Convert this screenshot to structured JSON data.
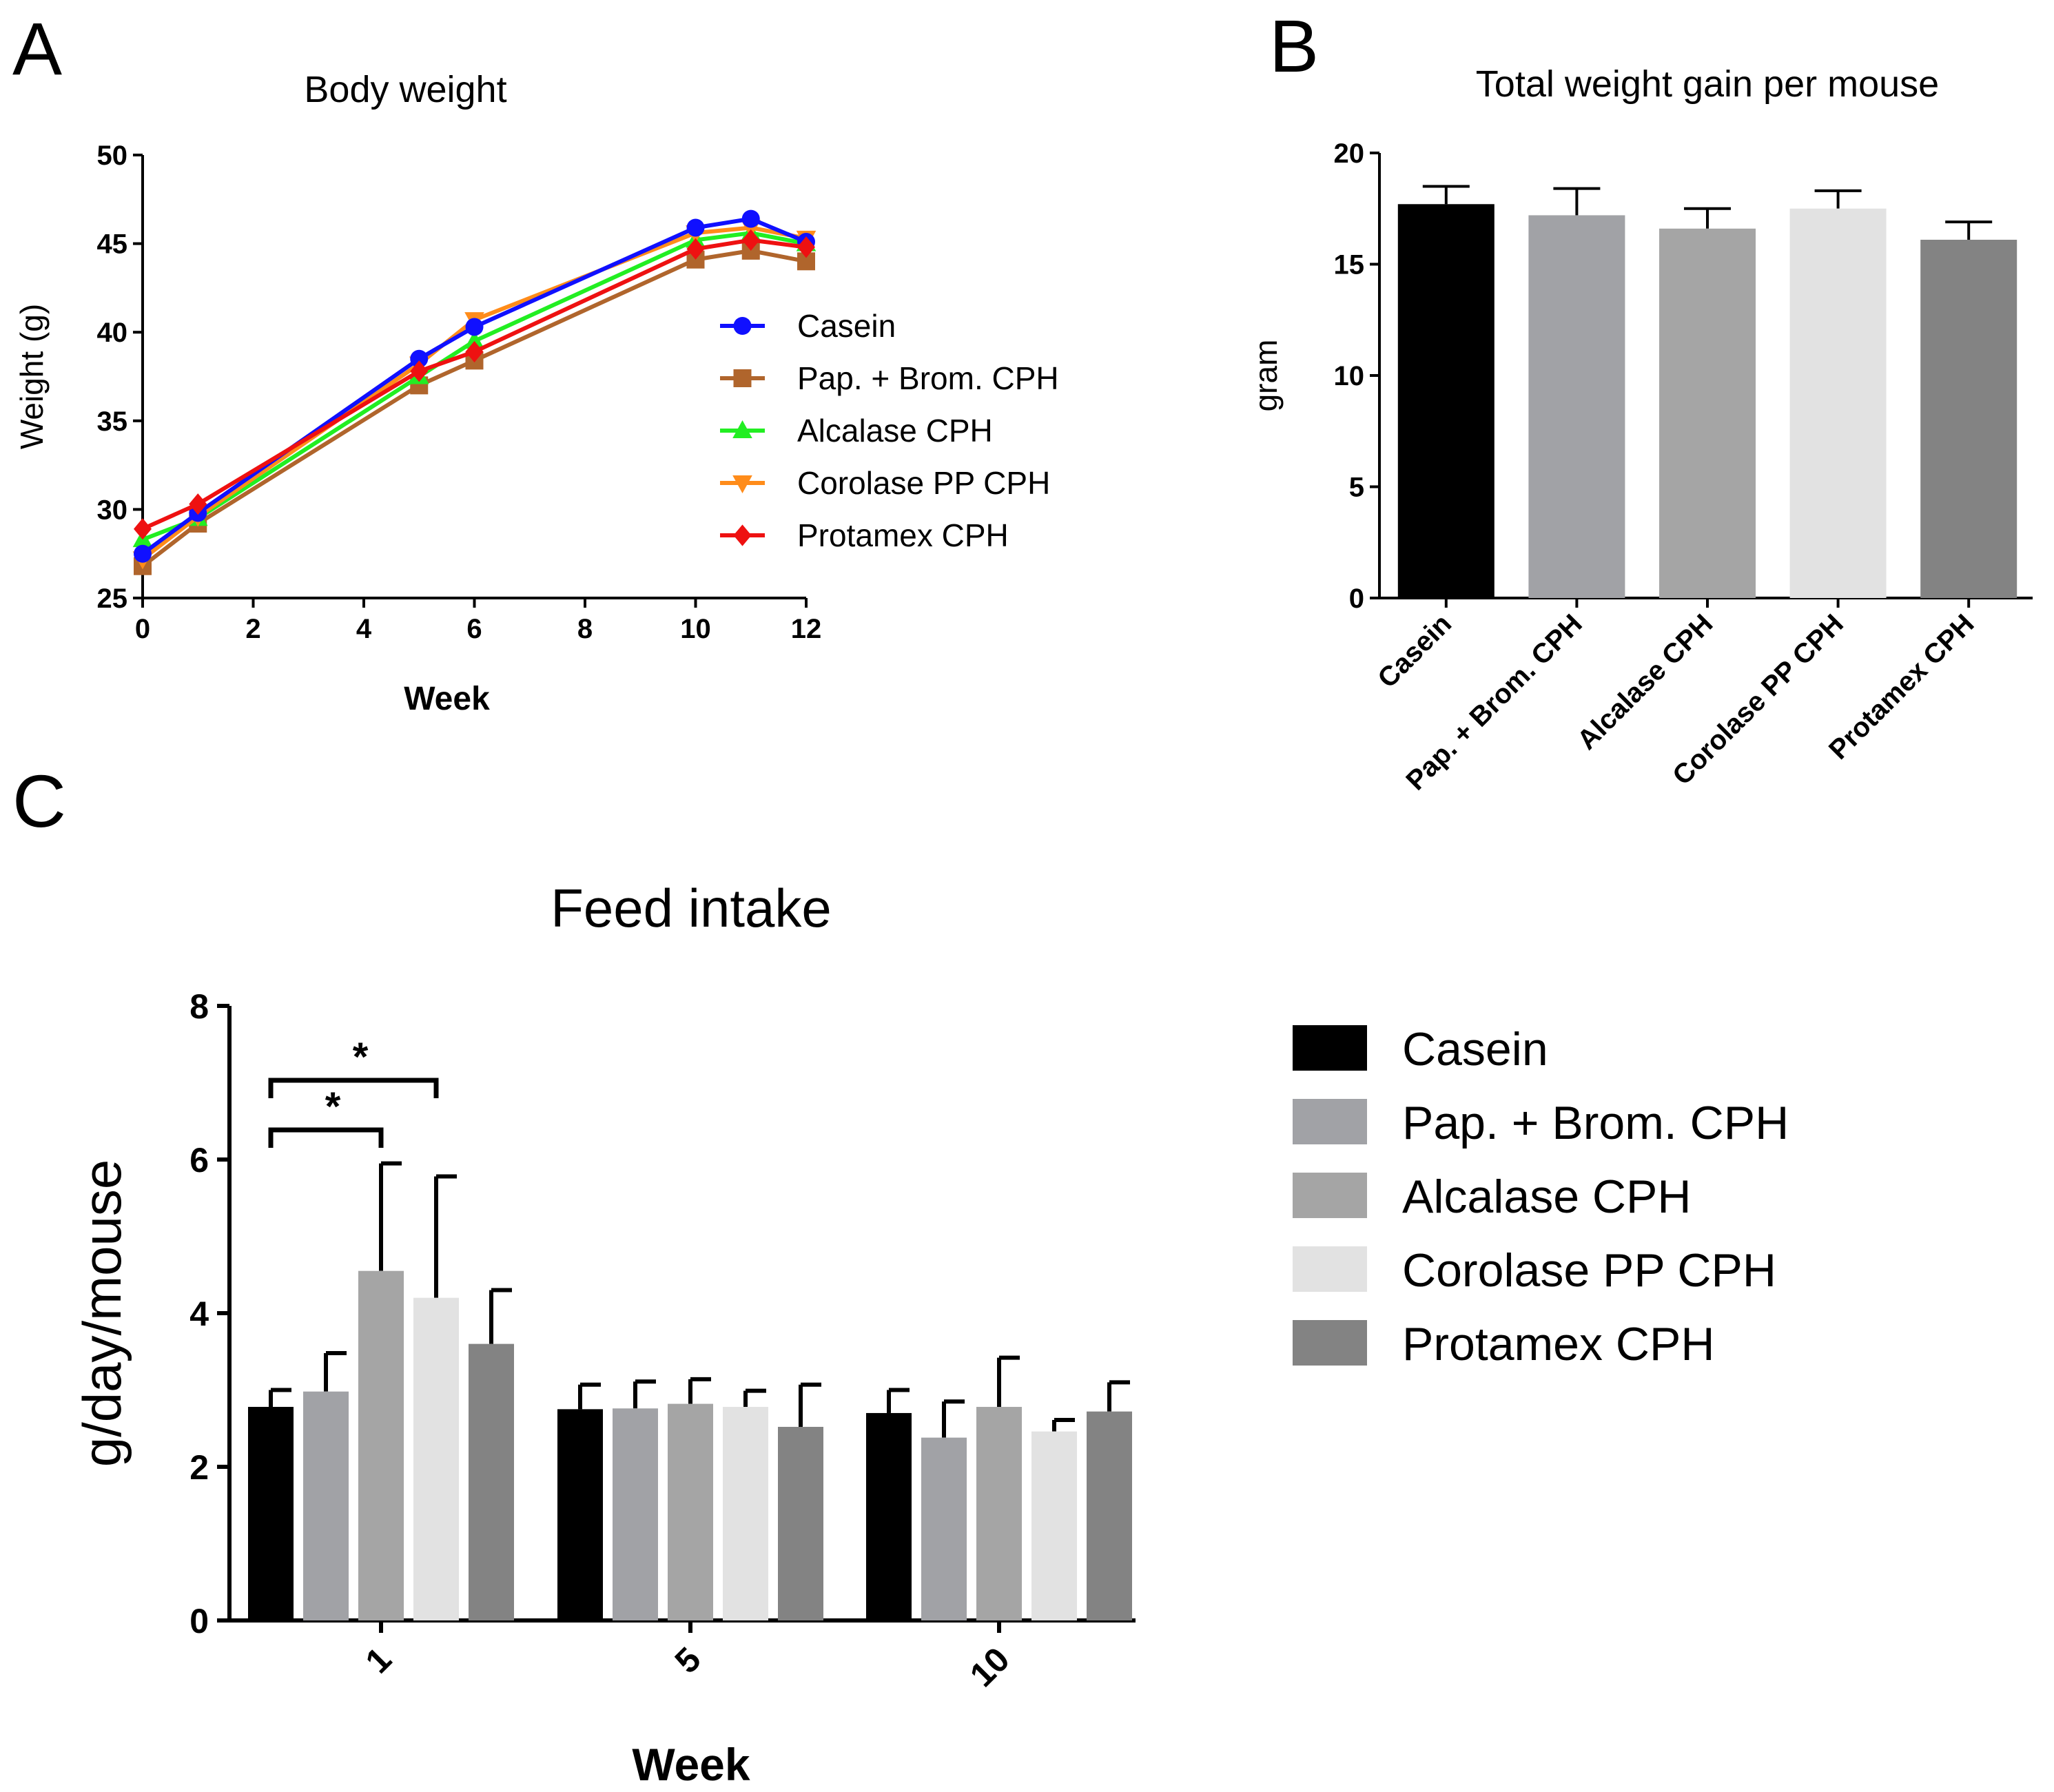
{
  "panels": {
    "a": {
      "letter": "A"
    },
    "b": {
      "letter": "B"
    },
    "c": {
      "letter": "C"
    }
  },
  "colors": {
    "casein_line": "#1010ff",
    "pap_line": "#b0652c",
    "alcalase_line": "#22ee22",
    "corolase_line": "#ff8c1a",
    "protamex_line": "#ee1111",
    "casein_bar": "#000000",
    "pap_bar": "#a1a2a6",
    "alcalase_bar": "#a5a5a5",
    "corolase_bar": "#e2e2e2",
    "protamex_bar": "#838383"
  },
  "chart_data": [
    {
      "id": "a",
      "type": "line",
      "title": "Body weight",
      "xlabel": "Week",
      "ylabel": "Weight (g)",
      "xlim": [
        0,
        12
      ],
      "ylim": [
        25,
        50
      ],
      "xticks": [
        0,
        2,
        4,
        6,
        8,
        10,
        12
      ],
      "yticks": [
        25,
        30,
        35,
        40,
        45,
        50
      ],
      "grid": false,
      "legend_position": "center-right",
      "x": [
        0,
        1,
        5,
        6,
        10,
        11,
        12
      ],
      "series": [
        {
          "name": "Casein",
          "marker": "circle",
          "values": [
            27.5,
            29.8,
            38.5,
            40.3,
            45.9,
            46.4,
            45.1
          ]
        },
        {
          "name": "Pap. + Brom. CPH",
          "marker": "square",
          "values": [
            26.8,
            29.2,
            37.0,
            38.4,
            44.1,
            44.6,
            44.0
          ]
        },
        {
          "name": "Alcalase CPH",
          "marker": "triangle-up",
          "values": [
            28.3,
            29.5,
            37.5,
            39.5,
            45.2,
            45.6,
            45.0
          ]
        },
        {
          "name": "Corolase PP CPH",
          "marker": "triangle-down",
          "values": [
            27.2,
            29.6,
            38.2,
            40.7,
            45.6,
            45.9,
            45.3
          ]
        },
        {
          "name": "Protamex CPH",
          "marker": "diamond",
          "values": [
            28.9,
            30.3,
            37.8,
            38.9,
            44.7,
            45.2,
            44.8
          ]
        }
      ]
    },
    {
      "id": "b",
      "type": "bar",
      "title": "Total weight gain per mouse",
      "xlabel": "",
      "ylabel": "gram",
      "ylim": [
        0,
        20
      ],
      "yticks": [
        0,
        5,
        10,
        15,
        20
      ],
      "categories": [
        "Casein",
        "Pap. + Brom. CPH",
        "Alcalase CPH",
        "Corolase PP CPH",
        "Protamex CPH"
      ],
      "values": [
        17.7,
        17.2,
        16.6,
        17.5,
        16.1
      ],
      "errors": [
        0.8,
        1.2,
        0.9,
        0.8,
        0.8
      ]
    },
    {
      "id": "c",
      "type": "bar",
      "title": "Feed intake",
      "xlabel": "Week",
      "ylabel": "g/day/mouse",
      "ylim": [
        0,
        8
      ],
      "yticks": [
        0,
        2,
        4,
        6,
        8
      ],
      "categories": [
        "1",
        "5",
        "10"
      ],
      "legend_position": "right",
      "series": [
        {
          "name": "Casein",
          "values": [
            2.78,
            2.75,
            2.7
          ],
          "errors": [
            0.22,
            0.32,
            0.3
          ]
        },
        {
          "name": "Pap. + Brom. CPH",
          "values": [
            2.98,
            2.76,
            2.38
          ],
          "errors": [
            0.5,
            0.35,
            0.47
          ]
        },
        {
          "name": "Alcalase CPH",
          "values": [
            4.55,
            2.82,
            2.78
          ],
          "errors": [
            1.4,
            0.32,
            0.64
          ]
        },
        {
          "name": "Corolase PP CPH",
          "values": [
            4.2,
            2.78,
            2.46
          ],
          "errors": [
            1.58,
            0.21,
            0.15
          ]
        },
        {
          "name": "Protamex CPH",
          "values": [
            3.6,
            2.52,
            2.72
          ],
          "errors": [
            0.7,
            0.55,
            0.38
          ]
        }
      ],
      "annotations": [
        {
          "from_series": 0,
          "to_series": 2,
          "category": "1",
          "label": "*"
        },
        {
          "from_series": 0,
          "to_series": 3,
          "category": "1",
          "label": "*"
        }
      ]
    }
  ]
}
